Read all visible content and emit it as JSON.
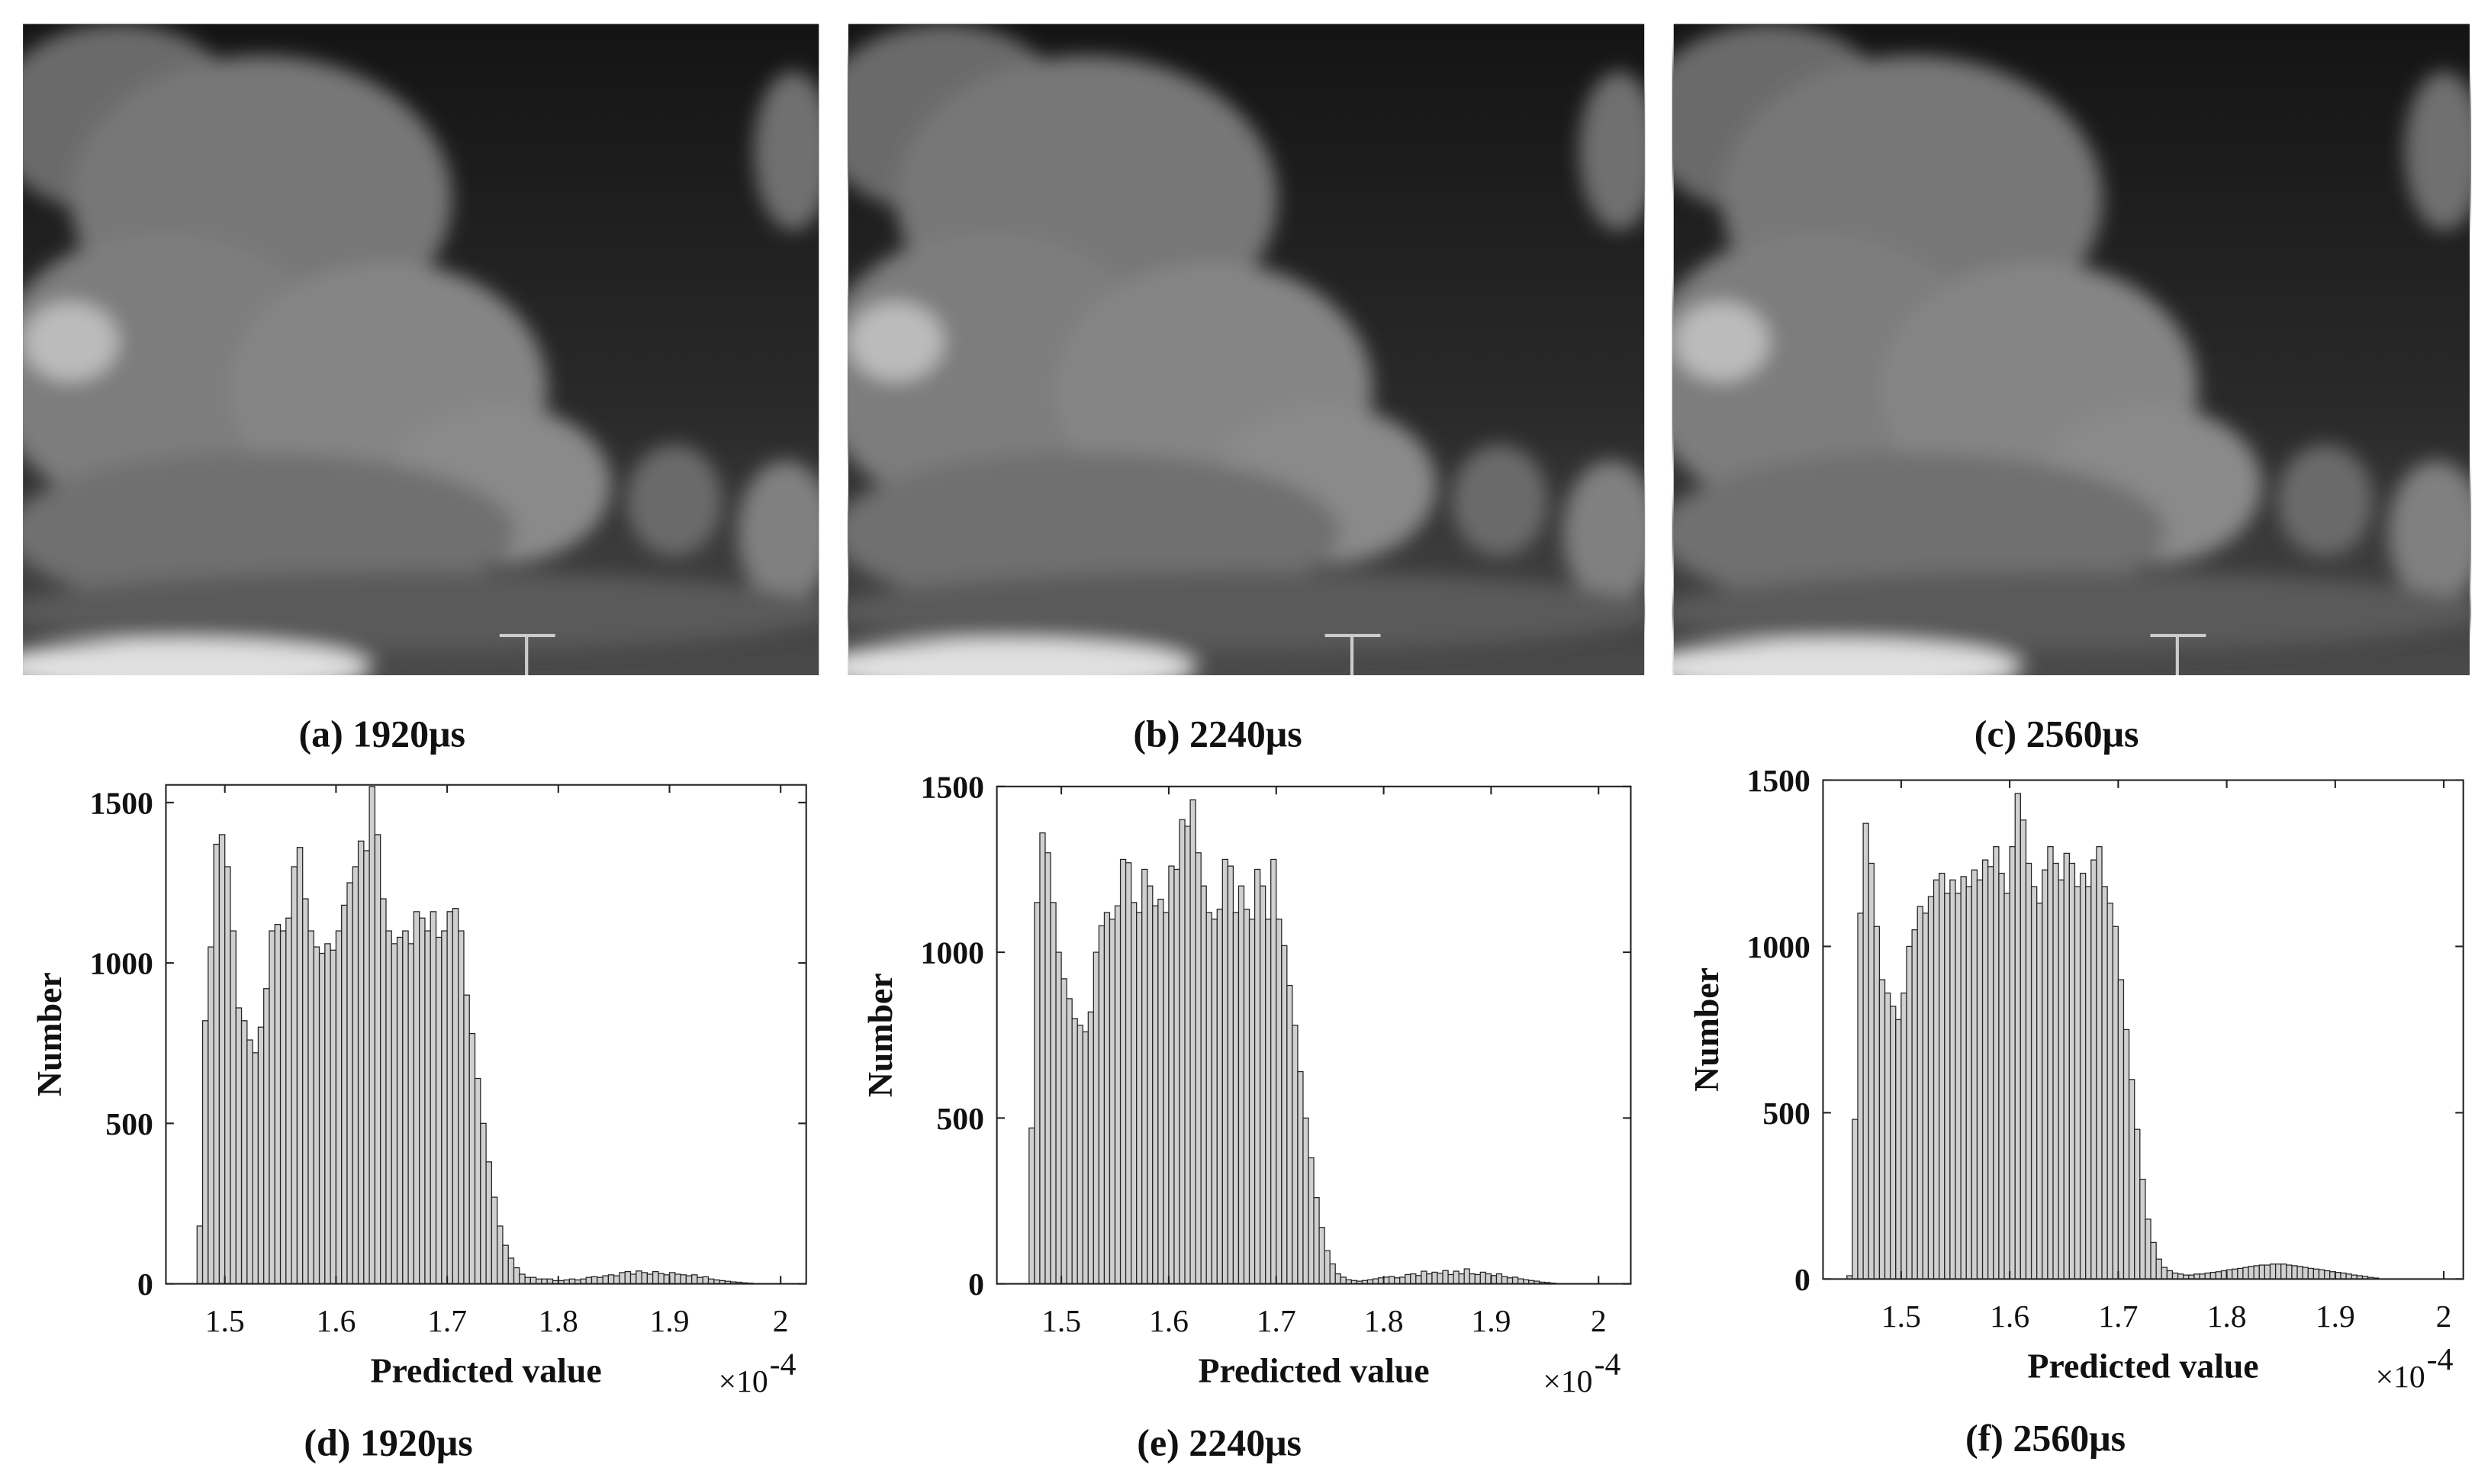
{
  "images": [
    {
      "caption": "(a) 1920μs"
    },
    {
      "caption": "(b) 2240μs"
    },
    {
      "caption": "(c) 2560μs"
    }
  ],
  "chart_data": [
    {
      "type": "histogram",
      "caption": "(d) 1920μs",
      "xlabel": "Predicted value",
      "ylabel": "Number",
      "x_scale_label": {
        "base": "×10",
        "exponent": "-4"
      },
      "color": "#d0d0d0",
      "xlim": [
        1.447,
        2.023
      ],
      "ylim": [
        0,
        1555
      ],
      "xticks": [
        1.5,
        1.6,
        1.7,
        1.8,
        1.9,
        2
      ],
      "yticks": [
        0,
        500,
        1000,
        1500
      ],
      "bins": [
        1.475,
        1.48,
        1.485,
        1.49,
        1.495,
        1.5,
        1.505,
        1.51,
        1.515,
        1.52,
        1.525,
        1.53,
        1.535,
        1.54,
        1.545,
        1.55,
        1.555,
        1.56,
        1.565,
        1.57,
        1.575,
        1.58,
        1.585,
        1.59,
        1.595,
        1.6,
        1.605,
        1.61,
        1.615,
        1.62,
        1.625,
        1.63,
        1.635,
        1.64,
        1.645,
        1.65,
        1.655,
        1.66,
        1.665,
        1.67,
        1.675,
        1.68,
        1.685,
        1.69,
        1.695,
        1.7,
        1.705,
        1.71,
        1.715,
        1.72,
        1.725,
        1.73,
        1.735,
        1.74,
        1.745,
        1.75,
        1.755,
        1.76,
        1.765,
        1.77,
        1.775,
        1.78,
        1.785,
        1.79,
        1.795,
        1.8,
        1.805,
        1.81,
        1.815,
        1.82,
        1.825,
        1.83,
        1.835,
        1.84,
        1.845,
        1.85,
        1.855,
        1.86,
        1.865,
        1.87,
        1.875,
        1.88,
        1.885,
        1.89,
        1.895,
        1.9,
        1.905,
        1.91,
        1.915,
        1.92,
        1.925,
        1.93,
        1.935,
        1.94,
        1.945,
        1.95,
        1.955,
        1.96,
        1.965,
        1.97,
        1.975
      ],
      "values": [
        180,
        820,
        1050,
        1370,
        1400,
        1300,
        1100,
        860,
        820,
        760,
        720,
        800,
        920,
        1100,
        1120,
        1100,
        1140,
        1300,
        1360,
        1200,
        1100,
        1050,
        1030,
        1060,
        1040,
        1100,
        1180,
        1250,
        1300,
        1380,
        1350,
        1550,
        1400,
        1200,
        1100,
        1060,
        1080,
        1100,
        1060,
        1160,
        1140,
        1100,
        1160,
        1080,
        1100,
        1160,
        1170,
        1100,
        900,
        780,
        640,
        500,
        380,
        270,
        180,
        120,
        80,
        50,
        30,
        20,
        20,
        15,
        15,
        15,
        10,
        10,
        12,
        15,
        12,
        15,
        20,
        22,
        20,
        25,
        28,
        25,
        35,
        38,
        30,
        40,
        35,
        30,
        38,
        32,
        28,
        35,
        30,
        28,
        25,
        28,
        20,
        22,
        15,
        12,
        10,
        8,
        6,
        5,
        3,
        2
      ]
    },
    {
      "type": "histogram",
      "caption": "(e) 2240μs",
      "xlabel": "Predicted value",
      "ylabel": "Number",
      "x_scale_label": {
        "base": "×10",
        "exponent": "-4"
      },
      "color": "#d0d0d0",
      "xlim": [
        1.44,
        2.03
      ],
      "ylim": [
        0,
        1500
      ],
      "xticks": [
        1.5,
        1.6,
        1.7,
        1.8,
        1.9,
        2
      ],
      "yticks": [
        0,
        500,
        1000,
        1500
      ],
      "bins": [
        1.47,
        1.475,
        1.48,
        1.485,
        1.49,
        1.495,
        1.5,
        1.505,
        1.51,
        1.515,
        1.52,
        1.525,
        1.53,
        1.535,
        1.54,
        1.545,
        1.55,
        1.555,
        1.56,
        1.565,
        1.57,
        1.575,
        1.58,
        1.585,
        1.59,
        1.595,
        1.6,
        1.605,
        1.61,
        1.615,
        1.62,
        1.625,
        1.63,
        1.635,
        1.64,
        1.645,
        1.65,
        1.655,
        1.66,
        1.665,
        1.67,
        1.675,
        1.68,
        1.685,
        1.69,
        1.695,
        1.7,
        1.705,
        1.71,
        1.715,
        1.72,
        1.725,
        1.73,
        1.735,
        1.74,
        1.745,
        1.75,
        1.755,
        1.76,
        1.765,
        1.77,
        1.775,
        1.78,
        1.785,
        1.79,
        1.795,
        1.8,
        1.805,
        1.81,
        1.815,
        1.82,
        1.825,
        1.83,
        1.835,
        1.84,
        1.845,
        1.85,
        1.855,
        1.86,
        1.865,
        1.87,
        1.875,
        1.88,
        1.885,
        1.89,
        1.895,
        1.9,
        1.905,
        1.91,
        1.915,
        1.92,
        1.925,
        1.93,
        1.935,
        1.94,
        1.945,
        1.95,
        1.955,
        1.96
      ],
      "values": [
        470,
        1150,
        1360,
        1300,
        1150,
        1000,
        920,
        860,
        800,
        780,
        760,
        820,
        1000,
        1080,
        1120,
        1100,
        1140,
        1280,
        1270,
        1150,
        1120,
        1250,
        1200,
        1140,
        1160,
        1120,
        1260,
        1250,
        1400,
        1380,
        1460,
        1300,
        1200,
        1120,
        1100,
        1130,
        1280,
        1260,
        1120,
        1200,
        1130,
        1100,
        1250,
        1200,
        1100,
        1280,
        1100,
        1020,
        900,
        780,
        640,
        500,
        380,
        260,
        170,
        100,
        60,
        30,
        20,
        12,
        10,
        8,
        10,
        12,
        15,
        18,
        20,
        22,
        18,
        20,
        28,
        30,
        25,
        38,
        30,
        35,
        32,
        40,
        28,
        38,
        30,
        45,
        30,
        28,
        35,
        30,
        25,
        30,
        22,
        18,
        20,
        15,
        12,
        10,
        8,
        5,
        4,
        2
      ]
    },
    {
      "type": "histogram",
      "caption": "(f) 2560μs",
      "xlabel": "Predicted value",
      "ylabel": "Number",
      "x_scale_label": {
        "base": "×10",
        "exponent": "-4"
      },
      "color": "#d0d0d0",
      "xlim": [
        1.428,
        2.018
      ],
      "ylim": [
        0,
        1500
      ],
      "xticks": [
        1.5,
        1.6,
        1.7,
        1.8,
        1.9,
        2
      ],
      "yticks": [
        0,
        500,
        1000,
        1500
      ],
      "bins": [
        1.45,
        1.455,
        1.46,
        1.465,
        1.47,
        1.475,
        1.48,
        1.485,
        1.49,
        1.495,
        1.5,
        1.505,
        1.51,
        1.515,
        1.52,
        1.525,
        1.53,
        1.535,
        1.54,
        1.545,
        1.55,
        1.555,
        1.56,
        1.565,
        1.57,
        1.575,
        1.58,
        1.585,
        1.59,
        1.595,
        1.6,
        1.605,
        1.61,
        1.615,
        1.62,
        1.625,
        1.63,
        1.635,
        1.64,
        1.645,
        1.65,
        1.655,
        1.66,
        1.665,
        1.67,
        1.675,
        1.68,
        1.685,
        1.69,
        1.695,
        1.7,
        1.705,
        1.71,
        1.715,
        1.72,
        1.725,
        1.73,
        1.735,
        1.74,
        1.745,
        1.75,
        1.755,
        1.76,
        1.765,
        1.77,
        1.775,
        1.78,
        1.785,
        1.79,
        1.795,
        1.8,
        1.805,
        1.81,
        1.815,
        1.82,
        1.825,
        1.83,
        1.835,
        1.84,
        1.845,
        1.85,
        1.855,
        1.86,
        1.865,
        1.87,
        1.875,
        1.88,
        1.885,
        1.89,
        1.895,
        1.9,
        1.905,
        1.91,
        1.915,
        1.92,
        1.925,
        1.93,
        1.935,
        1.94
      ],
      "values": [
        10,
        480,
        1100,
        1370,
        1250,
        1060,
        900,
        860,
        820,
        780,
        860,
        1000,
        1050,
        1120,
        1100,
        1150,
        1200,
        1220,
        1160,
        1200,
        1160,
        1210,
        1180,
        1230,
        1200,
        1260,
        1240,
        1300,
        1220,
        1160,
        1300,
        1460,
        1380,
        1250,
        1180,
        1130,
        1230,
        1300,
        1250,
        1200,
        1280,
        1250,
        1180,
        1220,
        1180,
        1260,
        1300,
        1180,
        1130,
        1060,
        900,
        750,
        600,
        450,
        300,
        180,
        110,
        60,
        35,
        25,
        18,
        15,
        12,
        12,
        15,
        15,
        18,
        20,
        22,
        25,
        28,
        30,
        32,
        35,
        38,
        40,
        42,
        42,
        45,
        45,
        45,
        42,
        40,
        38,
        35,
        32,
        30,
        28,
        25,
        22,
        20,
        18,
        15,
        12,
        10,
        8,
        5,
        3
      ]
    }
  ]
}
